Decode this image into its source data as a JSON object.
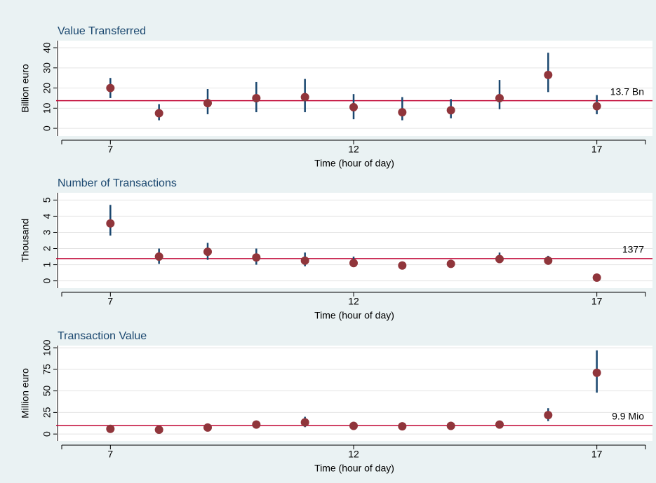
{
  "chart_data": [
    {
      "type": "scatter",
      "title": "Value Transferred",
      "y_label": "Billion euro",
      "x_label": "Time (hour of day)",
      "x": [
        7,
        8,
        9,
        10,
        11,
        12,
        13,
        14,
        15,
        16,
        17
      ],
      "series": [
        {
          "values": [
            20,
            7.5,
            12.5,
            15,
            15.5,
            10.5,
            8,
            9,
            15,
            26.5,
            11
          ],
          "lower": [
            15,
            4,
            7,
            8,
            8,
            4.5,
            4,
            5,
            9.5,
            18,
            7
          ],
          "upper": [
            25,
            12,
            19.5,
            23,
            24.5,
            17,
            15.5,
            14.5,
            24,
            37.5,
            16.5
          ],
          "color": "#90353b",
          "error_color": "#1a476f"
        }
      ],
      "xlim": [
        6,
        18
      ],
      "xticks": [
        7,
        12,
        17
      ],
      "ylim": [
        -3.8,
        43.5
      ],
      "yticks": [
        0,
        10,
        20,
        30,
        40
      ],
      "grid": true,
      "reference_line": {
        "value": 13.7,
        "label": "13.7 Bn",
        "color": "#c10534"
      }
    },
    {
      "type": "scatter",
      "title": "Number of Transactions",
      "y_label": "Thousand",
      "x_label": "Time (hour of day)",
      "x": [
        7,
        8,
        9,
        10,
        11,
        12,
        13,
        14,
        15,
        16,
        17
      ],
      "series": [
        {
          "values": [
            3.55,
            1.5,
            1.8,
            1.45,
            1.25,
            1.1,
            0.95,
            1.05,
            1.35,
            1.25,
            0.2
          ],
          "lower": [
            2.8,
            1.05,
            1.3,
            1.0,
            0.9,
            0.85,
            0.8,
            0.9,
            1.1,
            1.0,
            0.15
          ],
          "upper": [
            4.7,
            2.0,
            2.35,
            2.0,
            1.75,
            1.5,
            1.1,
            1.2,
            1.75,
            1.55,
            0.3
          ],
          "color": "#90353b",
          "error_color": "#1a476f"
        }
      ],
      "xlim": [
        6,
        18
      ],
      "xticks": [
        7,
        12,
        17
      ],
      "ylim": [
        -0.45,
        5.45
      ],
      "yticks": [
        0,
        1,
        2,
        3,
        4,
        5
      ],
      "grid": true,
      "reference_line": {
        "value": 1.377,
        "label": "1377",
        "color": "#c10534"
      }
    },
    {
      "type": "scatter",
      "title": "Transaction Value",
      "y_label": "Million euro",
      "x_label": "Time (hour of day)",
      "x": [
        7,
        8,
        9,
        10,
        11,
        12,
        13,
        14,
        15,
        16,
        17
      ],
      "series": [
        {
          "values": [
            6,
            5,
            7.5,
            11,
            13.5,
            9.5,
            9,
            9.5,
            11,
            22,
            71
          ],
          "lower": [
            4,
            4,
            6,
            8,
            8,
            7,
            7,
            7.5,
            9,
            15,
            48
          ],
          "upper": [
            8,
            6,
            9,
            14,
            20,
            12,
            11,
            11.5,
            13,
            30,
            97
          ],
          "color": "#90353b",
          "error_color": "#1a476f"
        }
      ],
      "xlim": [
        6,
        18
      ],
      "xticks": [
        7,
        12,
        17
      ],
      "ylim": [
        -8,
        102.5
      ],
      "yticks": [
        0,
        25,
        50,
        75,
        100
      ],
      "grid": true,
      "reference_line": {
        "value": 9.9,
        "label": "9.9 Mio",
        "color": "#c10534"
      }
    }
  ]
}
